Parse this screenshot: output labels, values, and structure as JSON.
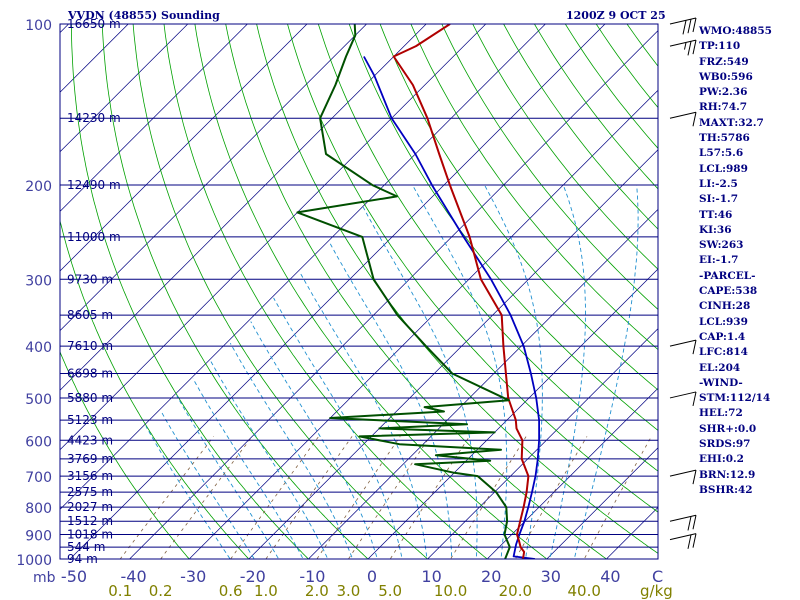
{
  "header": {
    "station_title": "VVDN (48855) Sounding",
    "obs_time": "1200Z  9 OCT 25"
  },
  "indices": [
    "WMO:48855",
    "TP:110",
    "FRZ:549",
    "WB0:596",
    "PW:2.36",
    "RH:74.7",
    "MAXT:32.7",
    "TH:5786",
    "L57:5.6",
    "LCL:989",
    "LI:-2.5",
    "SI:-1.7",
    "TT:46",
    "KI:36",
    "SW:263",
    "EI:-1.7",
    "-PARCEL-",
    "CAPE:538",
    "CINH:28",
    "LCL:939",
    "CAP:1.4",
    "LFC:814",
    "EL:204",
    "-WIND-",
    "STM:112/14",
    "HEL:72",
    "SHR+:0.0",
    "SRDS:97",
    "EHI:0.2",
    "BRN:12.9",
    "BSHR:42"
  ],
  "colors": {
    "isobar": "#000080",
    "dry_adiabat": "#00a000",
    "moist_adiabat": "#2090d0",
    "mixing_ratio": "#806040",
    "temperature": "#b00000",
    "dewpoint": "#005000",
    "parcel": "#0000c0",
    "text": "#000080",
    "tick_label_temp": "#4040a0",
    "tick_label_mixing": "#808000",
    "wind_barb": "#000000"
  },
  "chart_data": {
    "type": "skew-t",
    "title": "VVDN (48855) Sounding",
    "valid_time": "1200Z  9 OCT 25",
    "x_unit_label": "C",
    "y_unit_label": "mb",
    "mixing_ratio_unit_label": "g/kg",
    "xlim": [
      -50,
      50
    ],
    "ylim": [
      1000,
      100
    ],
    "log_pressure_axis": true,
    "pressure_labels": [
      "100",
      "200",
      "300",
      "400",
      "500",
      "600",
      "700",
      "800",
      "900",
      "1000"
    ],
    "temperature_ticks": [
      -50,
      -40,
      -30,
      -20,
      -10,
      0,
      10,
      20,
      30,
      40
    ],
    "temperature_tick_labels": [
      "-50",
      "-40",
      "-30",
      "-20",
      "-10",
      "0",
      "10",
      "20",
      "30",
      "40"
    ],
    "mixing_ratio_ticks": [
      0.1,
      0.2,
      0.6,
      1.0,
      2.0,
      3.0,
      5.0,
      10.0,
      20.0,
      40.0
    ],
    "mixing_ratio_tick_labels": [
      "0.1",
      "0.2",
      "0.6",
      "1.0",
      "2.0",
      "3.0",
      "5.0",
      "10.0",
      "20.0",
      "40.0"
    ],
    "height_levels": [
      {
        "p": 100,
        "label": "16650 m"
      },
      {
        "p": 150,
        "label": "14230 m"
      },
      {
        "p": 200,
        "label": "12490 m"
      },
      {
        "p": 250,
        "label": "11000 m"
      },
      {
        "p": 300,
        "label": "9730 m"
      },
      {
        "p": 350,
        "label": "8605 m"
      },
      {
        "p": 400,
        "label": "7610 m"
      },
      {
        "p": 450,
        "label": "6698 m"
      },
      {
        "p": 500,
        "label": "5880 m"
      },
      {
        "p": 550,
        "label": "5123 m"
      },
      {
        "p": 600,
        "label": "4423 m"
      },
      {
        "p": 650,
        "label": "3769 m"
      },
      {
        "p": 700,
        "label": "3156 m"
      },
      {
        "p": 750,
        "label": "2575 m"
      },
      {
        "p": 800,
        "label": "2027 m"
      },
      {
        "p": 850,
        "label": "1512 m"
      },
      {
        "p": 900,
        "label": "1018 m"
      },
      {
        "p": 950,
        "label": "544 m"
      },
      {
        "p": 1000,
        "label": "94 m"
      }
    ],
    "temperature_profile": [
      {
        "p": 1000,
        "t": 26.0
      },
      {
        "p": 970,
        "t": 25.0
      },
      {
        "p": 950,
        "t": 23.6
      },
      {
        "p": 925,
        "t": 22.3
      },
      {
        "p": 900,
        "t": 20.9
      },
      {
        "p": 850,
        "t": 19.2
      },
      {
        "p": 800,
        "t": 17.4
      },
      {
        "p": 750,
        "t": 15.4
      },
      {
        "p": 700,
        "t": 13.0
      },
      {
        "p": 650,
        "t": 9.0
      },
      {
        "p": 600,
        "t": 6.0
      },
      {
        "p": 570,
        "t": 3.0
      },
      {
        "p": 550,
        "t": 1.5
      },
      {
        "p": 500,
        "t": -3.5
      },
      {
        "p": 450,
        "t": -8.0
      },
      {
        "p": 400,
        "t": -13.0
      },
      {
        "p": 350,
        "t": -18.5
      },
      {
        "p": 300,
        "t": -28.0
      },
      {
        "p": 250,
        "t": -37.0
      },
      {
        "p": 200,
        "t": -49.0
      },
      {
        "p": 175,
        "t": -56.0
      },
      {
        "p": 150,
        "t": -64.0
      },
      {
        "p": 130,
        "t": -72.0
      },
      {
        "p": 115,
        "t": -80.0
      },
      {
        "p": 110,
        "t": -78.0
      },
      {
        "p": 100,
        "t": -76.0
      }
    ],
    "dewpoint_profile": [
      {
        "p": 1000,
        "td": 23.0
      },
      {
        "p": 950,
        "td": 21.8
      },
      {
        "p": 900,
        "td": 18.8
      },
      {
        "p": 850,
        "td": 17.0
      },
      {
        "p": 800,
        "td": 14.5
      },
      {
        "p": 750,
        "td": 10.3
      },
      {
        "p": 700,
        "td": 4.5
      },
      {
        "p": 690,
        "td": 0.0
      },
      {
        "p": 665,
        "td": -8.0
      },
      {
        "p": 655,
        "td": 4.0
      },
      {
        "p": 640,
        "td": -6.0
      },
      {
        "p": 625,
        "td": 4.0
      },
      {
        "p": 610,
        "td": -14.0
      },
      {
        "p": 590,
        "td": -22.0
      },
      {
        "p": 580,
        "td": 0.0
      },
      {
        "p": 570,
        "td": -20.0
      },
      {
        "p": 560,
        "td": -6.0
      },
      {
        "p": 545,
        "td": -30.0
      },
      {
        "p": 530,
        "td": -12.0
      },
      {
        "p": 520,
        "td": -16.0
      },
      {
        "p": 505,
        "td": -3.0
      },
      {
        "p": 450,
        "td": -17.0
      },
      {
        "p": 400,
        "td": -26.0
      },
      {
        "p": 350,
        "td": -36.0
      },
      {
        "p": 300,
        "td": -46.0
      },
      {
        "p": 250,
        "td": -55.0
      },
      {
        "p": 225,
        "td": -70.0
      },
      {
        "p": 210,
        "td": -56.0
      },
      {
        "p": 200,
        "td": -62.0
      },
      {
        "p": 175,
        "td": -75.0
      },
      {
        "p": 150,
        "td": -82.0
      },
      {
        "p": 130,
        "td": -85.0
      },
      {
        "p": 115,
        "td": -88.0
      },
      {
        "p": 105,
        "td": -90.0
      },
      {
        "p": 100,
        "td": -92.0
      }
    ],
    "parcel_profile": [
      {
        "p": 1000,
        "t": 28.0
      },
      {
        "p": 989,
        "t": 24.0
      },
      {
        "p": 939,
        "t": 22.4
      },
      {
        "p": 900,
        "t": 21.3
      },
      {
        "p": 850,
        "t": 19.9
      },
      {
        "p": 800,
        "t": 18.2
      },
      {
        "p": 750,
        "t": 16.3
      },
      {
        "p": 700,
        "t": 14.2
      },
      {
        "p": 650,
        "t": 11.7
      },
      {
        "p": 600,
        "t": 8.8
      },
      {
        "p": 550,
        "t": 5.4
      },
      {
        "p": 500,
        "t": 1.2
      },
      {
        "p": 450,
        "t": -3.8
      },
      {
        "p": 400,
        "t": -9.6
      },
      {
        "p": 350,
        "t": -17.0
      },
      {
        "p": 300,
        "t": -26.3
      },
      {
        "p": 250,
        "t": -38.0
      },
      {
        "p": 200,
        "t": -52.0
      },
      {
        "p": 175,
        "t": -60.0
      },
      {
        "p": 150,
        "t": -70.0
      },
      {
        "p": 125,
        "t": -80.0
      },
      {
        "p": 115,
        "t": -85.0
      }
    ],
    "wind_barbs": [
      {
        "p": 100,
        "type": "normal",
        "full": 3,
        "half": 0
      },
      {
        "p": 110,
        "type": "normal",
        "full": 2,
        "half": 1
      },
      {
        "p": 150,
        "type": "normal",
        "full": 1,
        "half": 0
      },
      {
        "p": 400,
        "type": "normal",
        "full": 1,
        "half": 0
      },
      {
        "p": 500,
        "type": "normal",
        "full": 1,
        "half": 0
      },
      {
        "p": 700,
        "type": "normal",
        "full": 1,
        "half": 0
      },
      {
        "p": 850,
        "type": "normal",
        "full": 2,
        "half": 0
      },
      {
        "p": 920,
        "type": "normal",
        "full": 2,
        "half": 0
      }
    ]
  }
}
